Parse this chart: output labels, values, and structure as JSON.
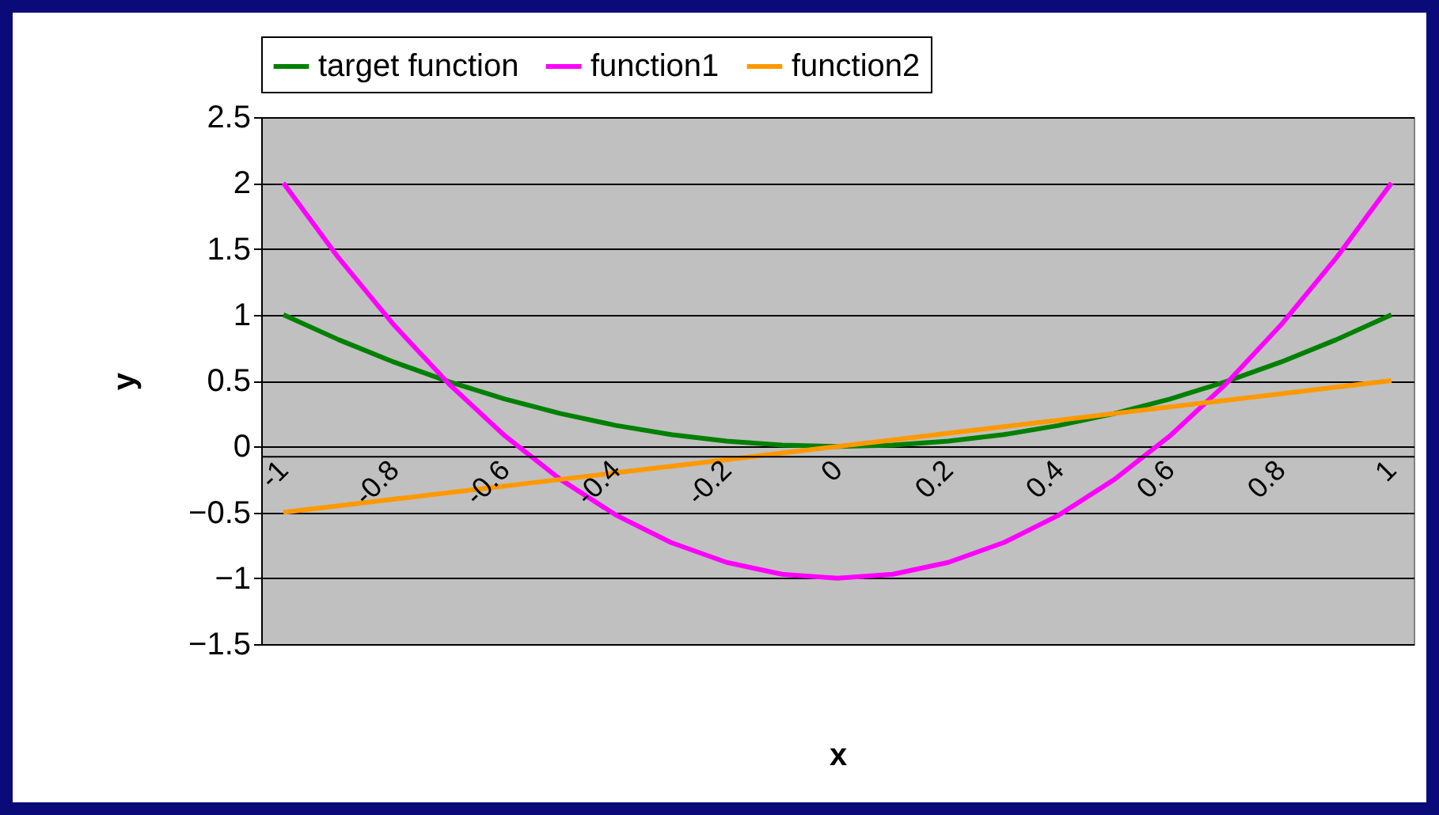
{
  "chart_data": {
    "type": "line",
    "xlabel": "x",
    "ylabel": "y",
    "categories": [
      "-1",
      null,
      "-0.8",
      null,
      "-0.6",
      null,
      "-0.4",
      null,
      "-0.2",
      null,
      "0",
      null,
      "0.2",
      null,
      "0.4",
      null,
      "0.6",
      null,
      "0.8",
      null,
      "1"
    ],
    "series": [
      {
        "name": "target function",
        "color": "#008000",
        "values": [
          1,
          0.81,
          0.64,
          0.49,
          0.36,
          0.25,
          0.16,
          0.09,
          0.04,
          0.01,
          0,
          0.01,
          0.04,
          0.09,
          0.16,
          0.25,
          0.36,
          0.49,
          0.64,
          0.81,
          1
        ]
      },
      {
        "name": "function1",
        "color": "#ff00ff",
        "values": [
          2,
          1.43,
          0.92,
          0.47,
          0.08,
          -0.25,
          -0.52,
          -0.73,
          -0.88,
          -0.97,
          -1,
          -0.97,
          -0.88,
          -0.73,
          -0.52,
          -0.25,
          0.08,
          0.47,
          0.92,
          1.43,
          2
        ]
      },
      {
        "name": "function2",
        "color": "#ff9900",
        "values": [
          -0.5,
          -0.45,
          -0.4,
          -0.35,
          -0.3,
          -0.25,
          -0.2,
          -0.15,
          -0.1,
          -0.05,
          0,
          0.05,
          0.1,
          0.15,
          0.2,
          0.25,
          0.3,
          0.35,
          0.4,
          0.45,
          0.5
        ]
      }
    ],
    "ylim": [
      -1.5,
      2.5
    ],
    "yticks": [
      -1.5,
      -1,
      -0.5,
      0,
      0.5,
      1,
      1.5,
      2,
      2.5
    ],
    "grid": "y",
    "legend": "top",
    "marker": "none",
    "line_style": "solid"
  }
}
